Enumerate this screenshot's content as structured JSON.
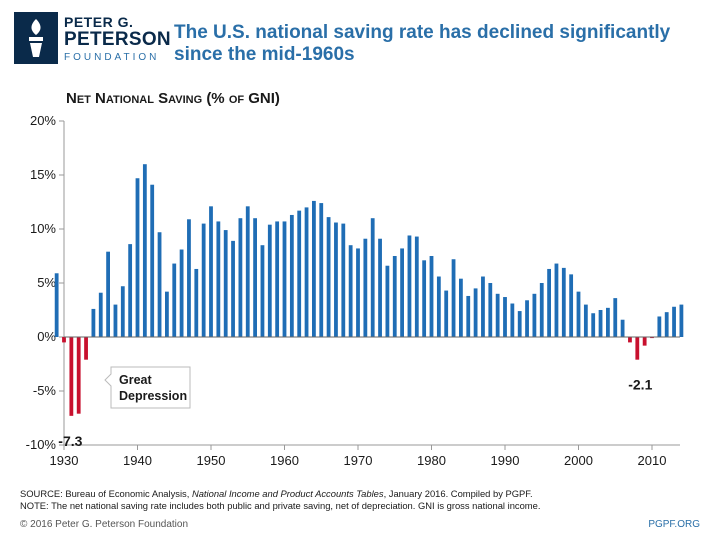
{
  "logo": {
    "line1": "PETER G.",
    "line2": "PETERSON",
    "line3": "FOUNDATION"
  },
  "headline": "The U.S. national saving rate has declined significantly since the mid-1960s",
  "footer": {
    "source_prefix": "SOURCE: Bureau of Economic Analysis, ",
    "source_title": "National Income and Product Accounts Tables",
    "source_suffix": ", January 2016. Compiled by PGPF.",
    "note": "NOTE: The net national saving rate includes both public and private saving, net of depreciation. GNI is gross national income.",
    "copyright": "© 2016 Peter G. Peterson Foundation",
    "site": "PGPF.ORG"
  },
  "colors": {
    "positive": "#1f6db5",
    "negative": "#c8102e",
    "brand": "#2a6fa8"
  },
  "chart_data": {
    "type": "bar",
    "title": "Net National Saving (% of GNI)",
    "ylabel": "Net National Saving (% of GNI)",
    "xlabel": "",
    "ylim": [
      -10,
      20
    ],
    "yticks": [
      20,
      15,
      10,
      5,
      0,
      -5,
      -10
    ],
    "ytick_labels": [
      "20%",
      "15%",
      "10%",
      "5%",
      "0%",
      "-5%",
      "-10%"
    ],
    "xlim": [
      1930,
      2015
    ],
    "xticks": [
      1930,
      1940,
      1950,
      1960,
      1970,
      1980,
      1990,
      2000,
      2010
    ],
    "x": [
      1929,
      1930,
      1931,
      1932,
      1933,
      1934,
      1935,
      1936,
      1937,
      1938,
      1939,
      1940,
      1941,
      1942,
      1943,
      1944,
      1945,
      1946,
      1947,
      1948,
      1949,
      1950,
      1951,
      1952,
      1953,
      1954,
      1955,
      1956,
      1957,
      1958,
      1959,
      1960,
      1961,
      1962,
      1963,
      1964,
      1965,
      1966,
      1967,
      1968,
      1969,
      1970,
      1971,
      1972,
      1973,
      1974,
      1975,
      1976,
      1977,
      1978,
      1979,
      1980,
      1981,
      1982,
      1983,
      1984,
      1985,
      1986,
      1987,
      1988,
      1989,
      1990,
      1991,
      1992,
      1993,
      1994,
      1995,
      1996,
      1997,
      1998,
      1999,
      2000,
      2001,
      2002,
      2003,
      2004,
      2005,
      2006,
      2007,
      2008,
      2009,
      2010,
      2011,
      2012,
      2013,
      2014
    ],
    "values": [
      5.9,
      -0.5,
      -7.3,
      -7.1,
      -2.1,
      2.6,
      4.1,
      7.9,
      3.0,
      4.7,
      8.6,
      14.7,
      16.0,
      14.1,
      9.7,
      4.2,
      6.8,
      8.1,
      10.9,
      6.3,
      10.5,
      12.1,
      10.7,
      9.9,
      8.9,
      11.0,
      12.1,
      11.0,
      8.5,
      10.4,
      10.7,
      10.7,
      11.3,
      11.7,
      12.0,
      12.6,
      12.4,
      11.1,
      10.6,
      10.5,
      8.5,
      8.2,
      9.1,
      11.0,
      9.1,
      6.6,
      7.5,
      8.2,
      9.4,
      9.3,
      7.1,
      7.5,
      5.6,
      4.3,
      7.2,
      5.4,
      3.8,
      4.5,
      5.6,
      5.0,
      4.0,
      3.7,
      3.1,
      2.4,
      3.4,
      4.0,
      5.0,
      6.3,
      6.8,
      6.4,
      5.8,
      4.2,
      3.0,
      2.2,
      2.5,
      2.7,
      3.6,
      1.6,
      -0.5,
      -2.1,
      -0.8,
      -0.1,
      1.9,
      2.3,
      2.8,
      3.0
    ],
    "annotations": [
      {
        "text": "-7.3",
        "x": 1931,
        "y": -7.3
      },
      {
        "text": "-2.1",
        "x": 2008,
        "y": -2.1
      },
      {
        "text": "Great Depression",
        "x": 1934,
        "y": -4.0
      }
    ]
  }
}
